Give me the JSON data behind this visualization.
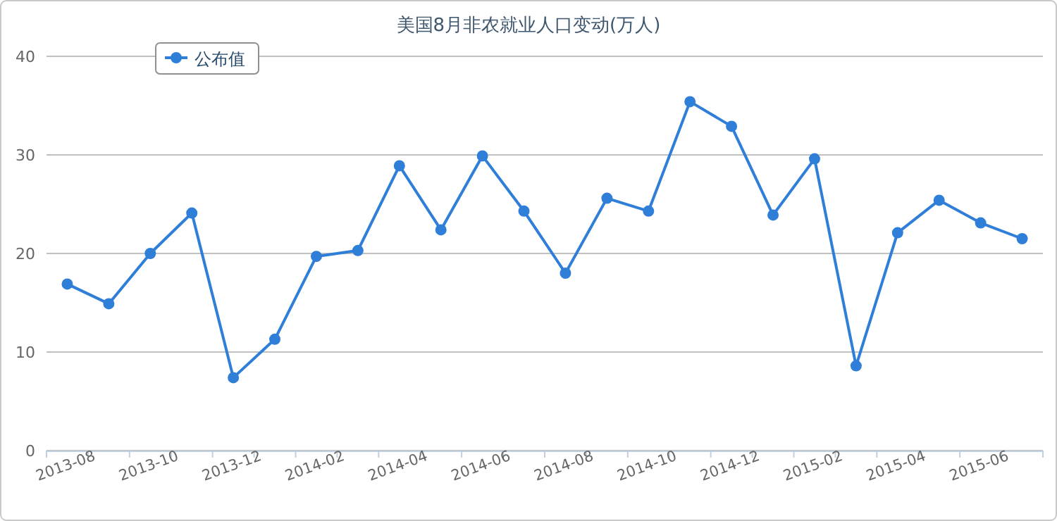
{
  "chart_data": {
    "type": "line",
    "title": "美国8月非农就业人口变动(万人)",
    "categories": [
      "2013-08",
      null,
      "2013-10",
      null,
      "2013-12",
      null,
      "2014-02",
      null,
      "2014-04",
      null,
      "2014-06",
      null,
      "2014-08",
      null,
      "2014-10",
      null,
      "2014-12",
      null,
      "2015-02",
      null,
      "2015-04",
      null,
      "2015-06",
      null
    ],
    "series": [
      {
        "name": "公布值",
        "color": "#2f7ed8",
        "values": [
          16.9,
          14.9,
          20.0,
          24.1,
          7.4,
          11.3,
          19.7,
          20.3,
          28.9,
          22.4,
          29.9,
          24.3,
          18.0,
          25.6,
          24.3,
          35.4,
          32.9,
          23.9,
          29.6,
          8.6,
          22.1,
          25.4,
          23.1,
          21.5
        ]
      }
    ],
    "ylim": [
      0,
      40
    ],
    "yticks": [
      0,
      10,
      20,
      30,
      40
    ],
    "grid": "y",
    "legend": "top left",
    "marker": "circle"
  }
}
